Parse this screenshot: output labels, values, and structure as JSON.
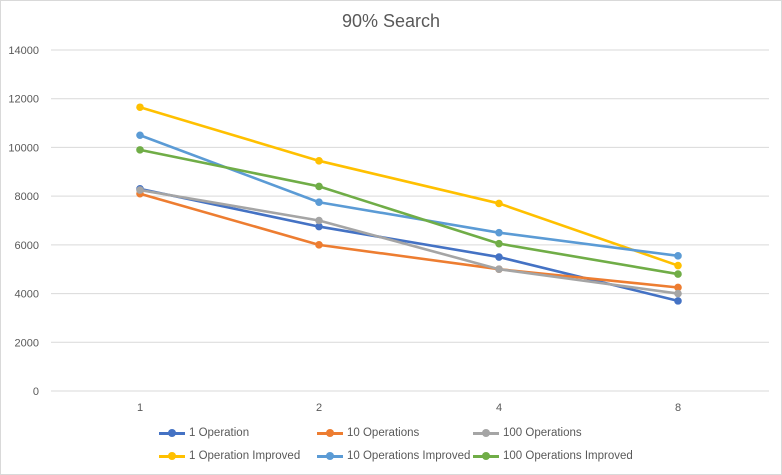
{
  "chart_data": {
    "type": "line",
    "title": "90% Search",
    "xlabel": "",
    "ylabel": "",
    "categories": [
      "1",
      "2",
      "4",
      "8"
    ],
    "ylim": [
      0,
      14000
    ],
    "yticks": [
      "0",
      "2000",
      "4000",
      "6000",
      "8000",
      "10000",
      "12000",
      "14000"
    ],
    "grid": true,
    "legend_position": "bottom",
    "series": [
      {
        "name": "1 Operation",
        "color": "#4472C4",
        "values": [
          8300,
          6750,
          5500,
          3700
        ]
      },
      {
        "name": "10 Operations",
        "color": "#ED7D31",
        "values": [
          8100,
          6000,
          5000,
          4250
        ]
      },
      {
        "name": "100 Operations",
        "color": "#A5A5A5",
        "values": [
          8250,
          7000,
          5000,
          4000
        ]
      },
      {
        "name": "1 Operation Improved",
        "color": "#FFC000",
        "values": [
          11650,
          9450,
          7700,
          5150
        ]
      },
      {
        "name": "10 Operations Improved",
        "color": "#5B9BD5",
        "values": [
          10500,
          7750,
          6500,
          5550
        ]
      },
      {
        "name": "100 Operations Improved",
        "color": "#70AD47",
        "values": [
          9900,
          8400,
          6050,
          4800
        ]
      }
    ]
  }
}
